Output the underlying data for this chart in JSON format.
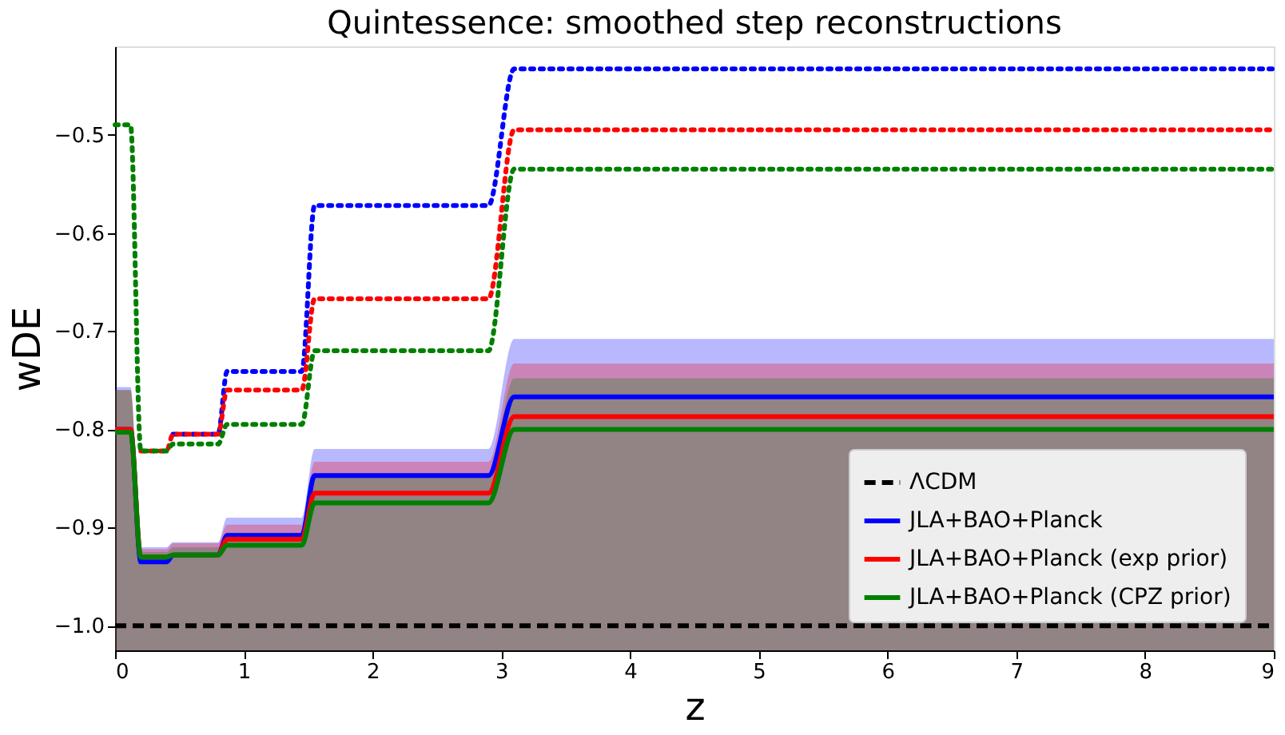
{
  "chart_data": {
    "type": "line",
    "title": "Quintessence: smoothed step reconstructions",
    "xlabel": "z",
    "ylabel": "wDE",
    "x": [
      0,
      0.12,
      0.2,
      0.4,
      0.45,
      0.8,
      0.87,
      1.45,
      1.55,
      2.9,
      3.1,
      9
    ],
    "series": [
      {
        "name": "ΛCDM",
        "color": "#000000",
        "line_style": "dashed",
        "values": [
          -1,
          -1,
          -1,
          -1,
          -1,
          -1,
          -1,
          -1,
          -1,
          -1,
          -1,
          -1
        ]
      },
      {
        "name": "JLA+BAO+Planck",
        "color": "#0000ff",
        "line_style": "solid",
        "values": [
          -0.8,
          -0.8,
          -0.935,
          -0.935,
          -0.928,
          -0.928,
          -0.908,
          -0.908,
          -0.847,
          -0.847,
          -0.767,
          -0.767
        ],
        "lower": [
          -1.025,
          -1.025,
          -1.025,
          -1.025,
          -1.025,
          -1.025,
          -1.025,
          -1.025,
          -1.025,
          -1.025,
          -1.025,
          -1.025
        ],
        "upper": [
          -0.757,
          -0.757,
          -0.92,
          -0.92,
          -0.915,
          -0.915,
          -0.89,
          -0.89,
          -0.82,
          -0.82,
          -0.708,
          -0.708
        ]
      },
      {
        "name": "JLA+BAO+Planck (exp prior)",
        "color": "#ff0000",
        "line_style": "solid",
        "values": [
          -0.8,
          -0.8,
          -0.93,
          -0.93,
          -0.928,
          -0.928,
          -0.912,
          -0.912,
          -0.865,
          -0.865,
          -0.787,
          -0.787
        ],
        "lower": [
          -1.025,
          -1.025,
          -1.025,
          -1.025,
          -1.025,
          -1.025,
          -1.025,
          -1.025,
          -1.025,
          -1.025,
          -1.025,
          -1.025
        ],
        "upper": [
          -0.76,
          -0.76,
          -0.922,
          -0.922,
          -0.916,
          -0.916,
          -0.897,
          -0.897,
          -0.833,
          -0.833,
          -0.733,
          -0.733
        ]
      },
      {
        "name": "JLA+BAO+Planck (CPZ prior)",
        "color": "#008000",
        "line_style": "solid",
        "values": [
          -0.803,
          -0.803,
          -0.93,
          -0.93,
          -0.928,
          -0.928,
          -0.918,
          -0.918,
          -0.875,
          -0.875,
          -0.8,
          -0.8
        ],
        "lower": [
          -1.025,
          -1.025,
          -1.025,
          -1.025,
          -1.025,
          -1.025,
          -1.025,
          -1.025,
          -1.025,
          -1.025,
          -1.025,
          -1.025
        ],
        "upper": [
          -0.76,
          -0.76,
          -0.925,
          -0.925,
          -0.92,
          -0.92,
          -0.905,
          -0.905,
          -0.845,
          -0.845,
          -0.748,
          -0.748
        ]
      },
      {
        "color": "#0000ff",
        "line_style": "dotted",
        "values": [
          null,
          null,
          null,
          null,
          -0.805,
          -0.805,
          -0.741,
          -0.741,
          -0.572,
          -0.572,
          -0.433,
          -0.433
        ]
      },
      {
        "color": "#ff0000",
        "line_style": "dotted",
        "values": [
          null,
          null,
          -0.822,
          -0.822,
          -0.805,
          -0.805,
          -0.76,
          -0.76,
          -0.667,
          -0.667,
          -0.495,
          -0.495
        ]
      },
      {
        "color": "#008000",
        "line_style": "dotted",
        "values": [
          -0.49,
          -0.49,
          -0.822,
          -0.822,
          -0.815,
          -0.815,
          -0.795,
          -0.795,
          -0.72,
          -0.72,
          -0.535,
          -0.535
        ]
      }
    ],
    "xlim": [
      0,
      9
    ],
    "xticks": [
      0,
      1,
      2,
      3,
      4,
      5,
      6,
      7,
      8,
      9
    ],
    "ylim": [
      -1.025,
      -0.41
    ],
    "yticks": [
      {
        "value": -1.0,
        "label": "−1.0"
      },
      {
        "value": -0.9,
        "label": "−0.9"
      },
      {
        "value": -0.8,
        "label": "−0.8"
      },
      {
        "value": -0.7,
        "label": "−0.7"
      },
      {
        "value": -0.6,
        "label": "−0.6"
      },
      {
        "value": -0.5,
        "label": "−0.5"
      }
    ],
    "grid": false,
    "legend": "bottom right",
    "marker": "none"
  }
}
